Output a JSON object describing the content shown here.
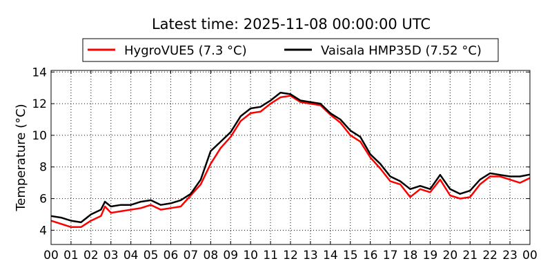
{
  "chart_data": {
    "type": "line",
    "title": "Latest time: 2025-11-08 00:00:00 UTC",
    "xlabel": "",
    "ylabel": "Temperature (°C)",
    "xlim": [
      0,
      24
    ],
    "ylim": [
      3.1,
      14.1
    ],
    "grid": true,
    "legend_position": "top-center",
    "x_ticks": [
      0,
      1,
      2,
      3,
      4,
      5,
      6,
      7,
      8,
      9,
      10,
      11,
      12,
      13,
      14,
      15,
      16,
      17,
      18,
      19,
      20,
      21,
      22,
      23,
      24
    ],
    "x_tick_labels": [
      "00",
      "01",
      "02",
      "03",
      "04",
      "05",
      "06",
      "07",
      "08",
      "09",
      "10",
      "11",
      "12",
      "13",
      "14",
      "15",
      "16",
      "17",
      "18",
      "19",
      "20",
      "21",
      "22",
      "23",
      "00"
    ],
    "y_ticks": [
      4,
      6,
      8,
      10,
      12,
      14
    ],
    "y_tick_labels": [
      "4",
      "6",
      "8",
      "10",
      "12",
      "14"
    ],
    "x": [
      0,
      0.5,
      1,
      1.5,
      2,
      2.5,
      2.7,
      3,
      3.5,
      4,
      4.5,
      5,
      5.5,
      6,
      6.5,
      7,
      7.5,
      8,
      8.5,
      9,
      9.5,
      10,
      10.5,
      11,
      11.5,
      12,
      12.5,
      13,
      13.5,
      14,
      14.5,
      15,
      15.5,
      16,
      16.5,
      17,
      17.5,
      18,
      18.5,
      19,
      19.5,
      20,
      20.5,
      21,
      21.5,
      22,
      22.5,
      23,
      23.5,
      24
    ],
    "series": [
      {
        "name": "HygroVUE5 (7.3 °C)",
        "color": "#ff0000",
        "values": [
          4.6,
          4.4,
          4.2,
          4.2,
          4.6,
          4.9,
          5.5,
          5.1,
          5.2,
          5.3,
          5.4,
          5.6,
          5.3,
          5.4,
          5.5,
          6.2,
          6.9,
          8.2,
          9.2,
          9.9,
          10.9,
          11.4,
          11.5,
          12.0,
          12.4,
          12.5,
          12.1,
          12.0,
          11.9,
          11.3,
          10.8,
          10.0,
          9.6,
          8.6,
          7.9,
          7.1,
          6.9,
          6.1,
          6.6,
          6.4,
          7.2,
          6.2,
          6.0,
          6.1,
          6.9,
          7.4,
          7.4,
          7.2,
          7.0,
          7.3
        ]
      },
      {
        "name": "Vaisala HMP35D (7.52 °C)",
        "color": "#000000",
        "values": [
          4.9,
          4.8,
          4.6,
          4.5,
          5.0,
          5.3,
          5.8,
          5.5,
          5.6,
          5.6,
          5.8,
          5.9,
          5.6,
          5.7,
          5.9,
          6.3,
          7.2,
          9.0,
          9.6,
          10.2,
          11.2,
          11.7,
          11.8,
          12.2,
          12.7,
          12.6,
          12.2,
          12.1,
          12.0,
          11.4,
          11.0,
          10.3,
          9.9,
          8.8,
          8.2,
          7.4,
          7.1,
          6.6,
          6.8,
          6.6,
          7.5,
          6.6,
          6.3,
          6.5,
          7.2,
          7.6,
          7.5,
          7.4,
          7.4,
          7.52
        ]
      }
    ]
  }
}
